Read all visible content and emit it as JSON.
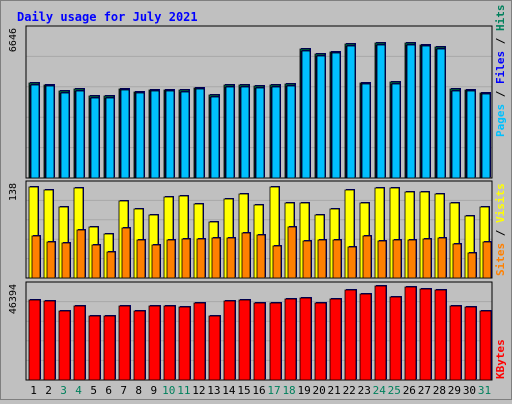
{
  "chart_data": {
    "type": "bar",
    "title": "Daily usage for July 2021",
    "categories": [
      "1",
      "2",
      "3",
      "4",
      "5",
      "6",
      "7",
      "8",
      "9",
      "10",
      "11",
      "12",
      "13",
      "14",
      "15",
      "16",
      "17",
      "18",
      "19",
      "20",
      "21",
      "22",
      "23",
      "24",
      "25",
      "26",
      "27",
      "28",
      "29",
      "30",
      "31"
    ],
    "weekend_days": [
      "3",
      "4",
      "10",
      "11",
      "17",
      "18",
      "24",
      "25",
      "31"
    ],
    "panels": [
      {
        "name": "hits-files-pages",
        "max_label": "6646",
        "ylim": [
          0,
          6646
        ],
        "series": [
          {
            "name": "Hits",
            "color": "#00805c",
            "values": [
              4255,
              4175,
              3895,
              3975,
              3665,
              3665,
              4015,
              3855,
              3945,
              3945,
              3935,
              4055,
              3705,
              4165,
              4165,
              4115,
              4155,
              4205,
              5775,
              5555,
              5675,
              5995,
              4285,
              6046,
              4295,
              6046,
              5985,
              5875,
              3985,
              3945,
              3815
            ]
          },
          {
            "name": "Files",
            "color": "#0000ff",
            "values": [
              4195,
              4115,
              3835,
              3915,
              3605,
              3605,
              3955,
              3795,
              3885,
              3885,
              3875,
              3995,
              3645,
              4105,
              4105,
              4055,
              4095,
              4145,
              5715,
              5495,
              5615,
              5935,
              4225,
              5985,
              4235,
              5985,
              5925,
              5815,
              3925,
              3885,
              3755
            ]
          },
          {
            "name": "Pages",
            "color": "#00c0ff",
            "values": [
              4195,
              4115,
              3835,
              3915,
              3605,
              3605,
              3955,
              3795,
              3885,
              3885,
              3875,
              3995,
              3645,
              4105,
              4105,
              4055,
              4095,
              4145,
              5715,
              5495,
              5615,
              5935,
              4225,
              5985,
              4235,
              5985,
              5925,
              5815,
              3925,
              3885,
              3755
            ]
          }
        ]
      },
      {
        "name": "visits-sites",
        "max_label": "138",
        "ylim": [
          0,
          138
        ],
        "series": [
          {
            "name": "Visits",
            "color": "#ffff00",
            "values": [
              135,
              130,
              105,
              134,
              75,
              66,
              114,
              102,
              94,
              120,
              121,
              110,
              83,
              117,
              124,
              109,
              135,
              111,
              111,
              93,
              102,
              131,
              112,
              134,
              133,
              128,
              128,
              124,
              112,
              92,
              105
            ]
          },
          {
            "name": "Sites",
            "color": "#ff8000",
            "values": [
              63,
              54,
              52,
              71,
              49,
              38,
              74,
              56,
              49,
              57,
              58,
              58,
              59,
              59,
              67,
              64,
              48,
              75,
              55,
              56,
              56,
              46,
              62,
              55,
              56,
              57,
              58,
              60,
              50,
              37,
              53
            ]
          }
        ]
      },
      {
        "name": "kbytes",
        "max_label": "46394",
        "ylim": [
          0,
          46394
        ],
        "series": [
          {
            "name": "KBytes",
            "color": "#ff0000",
            "values": [
              39700,
              39200,
              34300,
              36300,
              31400,
              31400,
              36700,
              34300,
              36300,
              36300,
              35800,
              37800,
              31400,
              39200,
              39700,
              37800,
              38200,
              40200,
              40700,
              38200,
              40200,
              44600,
              42200,
              46300,
              41200,
              46000,
              45000,
              44600,
              36300,
              35800,
              34300
            ]
          }
        ]
      }
    ]
  }
}
